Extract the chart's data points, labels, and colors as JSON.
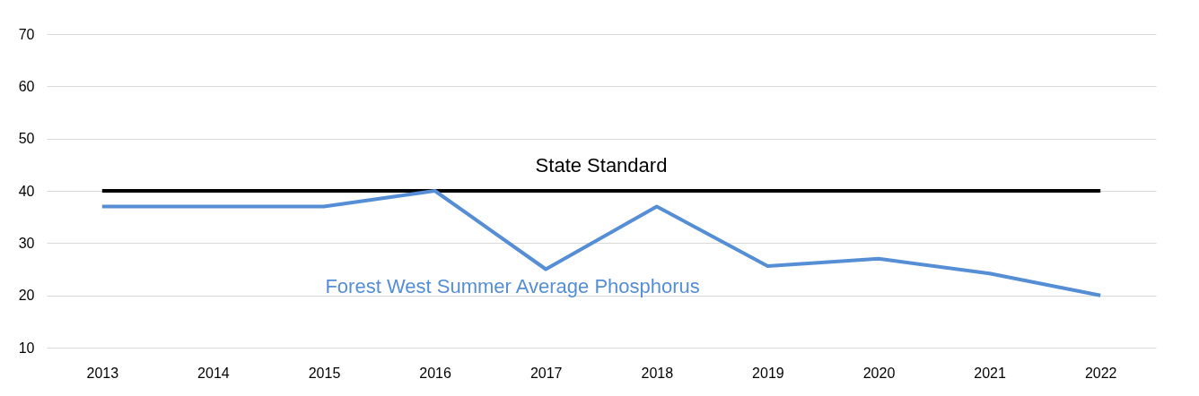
{
  "chart_data": {
    "type": "line",
    "categories": [
      "2013",
      "2014",
      "2015",
      "2016",
      "2017",
      "2018",
      "2019",
      "2020",
      "2021",
      "2022"
    ],
    "series": [
      {
        "name": "State Standard",
        "color": "#000000",
        "values": [
          40,
          40,
          40,
          40,
          40,
          40,
          40,
          40,
          40,
          40
        ]
      },
      {
        "name": "Forest West Summer Average Phosphorus",
        "color": "#558ed5",
        "values": [
          37,
          37,
          37,
          40,
          25,
          37,
          25.6,
          27,
          24.2,
          20
        ]
      }
    ],
    "ylim": [
      10,
      70
    ],
    "yticks": [
      10,
      20,
      30,
      40,
      50,
      60,
      70
    ],
    "grid": "y",
    "legend": false,
    "marker": "none",
    "line_style": "solid"
  }
}
